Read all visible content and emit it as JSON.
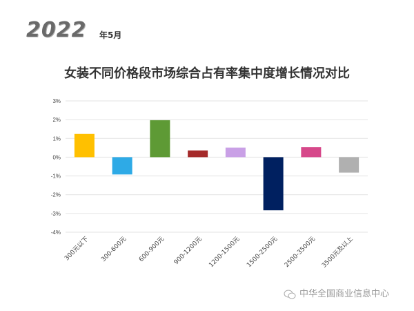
{
  "header": {
    "year": "2022",
    "month": "年5月"
  },
  "watermark": {
    "icon": "wechat-icon",
    "text": "中华全国商业信息中心"
  },
  "chart_data": {
    "type": "bar",
    "title": "女装不同价格段市场综合占有率集中度增长情况对比",
    "categories": [
      "300元以下",
      "300-600元",
      "600-900元",
      "900-1200元",
      "1200-1500元",
      "1500-2500元",
      "2500-3500元",
      "3500元及以上"
    ],
    "values": [
      1.24,
      -0.92,
      1.97,
      0.36,
      0.51,
      -2.83,
      0.53,
      -0.82
    ],
    "colors": [
      "#ffc000",
      "#2eaae6",
      "#5e9a35",
      "#a52a2a",
      "#c9a0e6",
      "#002060",
      "#d6488a",
      "#b0b0b0"
    ],
    "ylim": [
      -4,
      3
    ],
    "yticks": [
      "-4%",
      "-3%",
      "-2%",
      "-1%",
      "0%",
      "1%",
      "2%",
      "3%"
    ],
    "ytick_values": [
      -4,
      -3,
      -2,
      -1,
      0,
      1,
      2,
      3
    ],
    "grid": true,
    "xlabel": "",
    "ylabel": ""
  }
}
